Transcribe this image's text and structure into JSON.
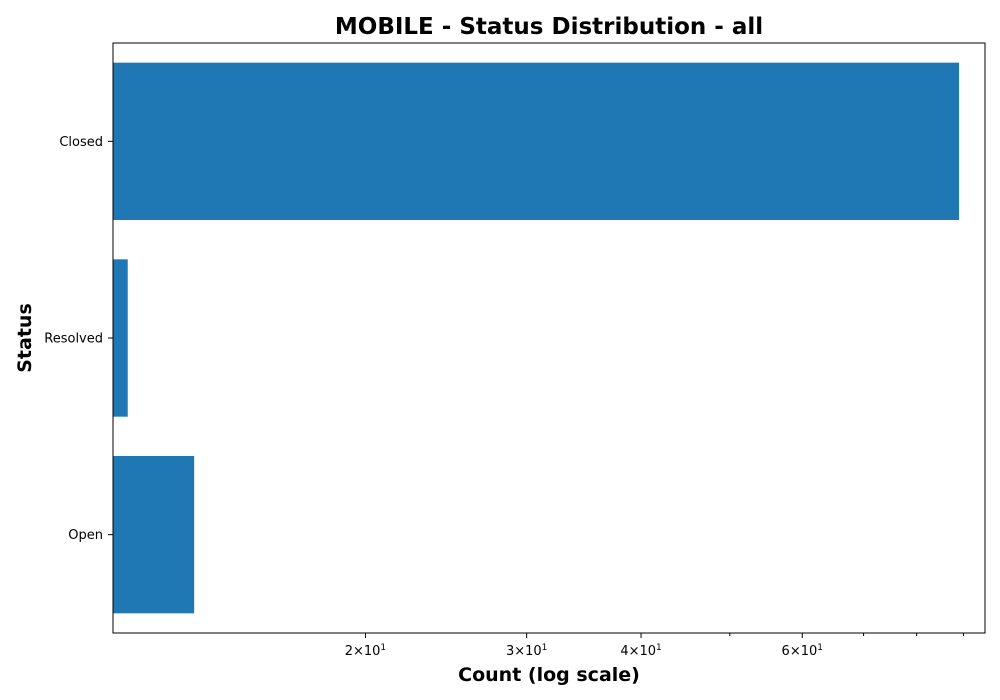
{
  "chart_data": {
    "type": "bar",
    "orientation": "horizontal",
    "title": "MOBILE - Status Distribution - all",
    "xlabel": "Count (log scale)",
    "ylabel": "Status",
    "x_scale": "log",
    "xlim": [
      10.6,
      95
    ],
    "categories": [
      "Open",
      "Resolved",
      "Closed"
    ],
    "values": [
      13,
      11,
      89
    ],
    "bar_color": "#1f77b4",
    "x_tick_labels": [
      {
        "base": "2",
        "exp": "1",
        "value": 20
      },
      {
        "base": "3",
        "exp": "1",
        "value": 30
      },
      {
        "base": "4",
        "exp": "1",
        "value": 40
      },
      {
        "base": "6",
        "exp": "1",
        "value": 60
      }
    ],
    "x_minor_ticks": [
      50,
      70,
      80,
      90
    ],
    "grid": false,
    "legend": "none"
  }
}
